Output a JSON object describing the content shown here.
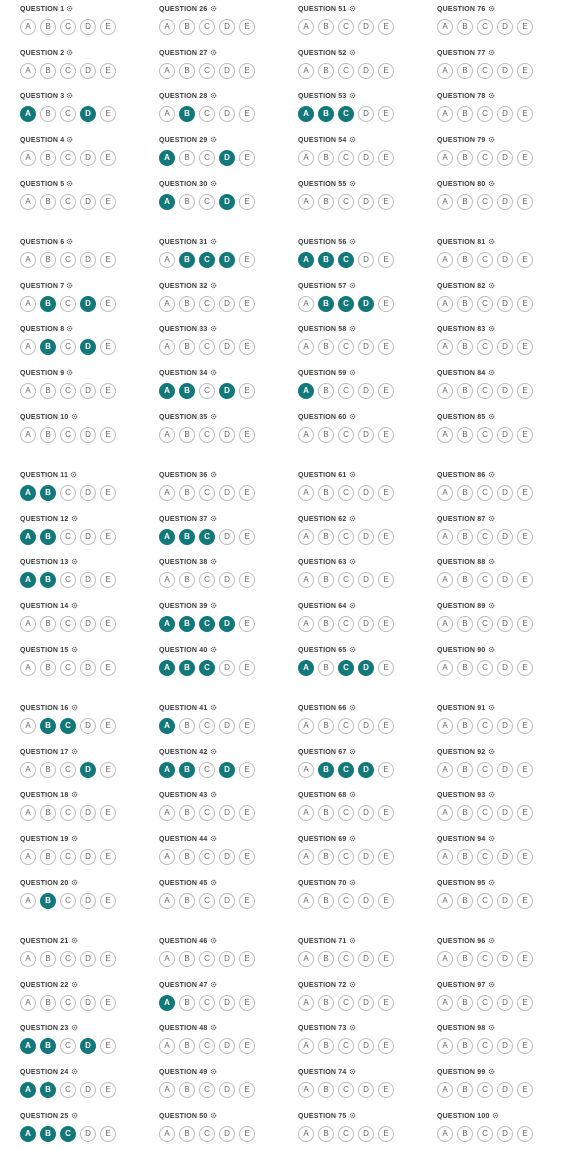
{
  "options": [
    "A",
    "B",
    "C",
    "D",
    "E"
  ],
  "colors": {
    "selected": "#13787a",
    "border": "#bcbcbc",
    "label": "#3a3a3a"
  },
  "icon": "gear-icon",
  "questions": [
    {
      "label": "QUESTION 1",
      "selected": []
    },
    {
      "label": "QUESTION 2",
      "selected": []
    },
    {
      "label": "QUESTION 3",
      "selected": [
        "A",
        "D"
      ]
    },
    {
      "label": "QUESTION 4",
      "selected": []
    },
    {
      "label": "QUESTION 5",
      "selected": []
    },
    {
      "label": "QUESTION 6",
      "selected": []
    },
    {
      "label": "QUESTION 7",
      "selected": [
        "B",
        "D"
      ]
    },
    {
      "label": "QUESTION 8",
      "selected": [
        "B",
        "D"
      ]
    },
    {
      "label": "QUESTION 9",
      "selected": []
    },
    {
      "label": "QUESTION 10",
      "selected": []
    },
    {
      "label": "QUESTION 11",
      "selected": [
        "A",
        "B"
      ]
    },
    {
      "label": "QUESTION 12",
      "selected": [
        "A",
        "B"
      ]
    },
    {
      "label": "QUESTION 13",
      "selected": [
        "A",
        "B"
      ]
    },
    {
      "label": "QUESTION 14",
      "selected": []
    },
    {
      "label": "QUESTION 15",
      "selected": []
    },
    {
      "label": "QUESTION 16",
      "selected": [
        "B",
        "C"
      ]
    },
    {
      "label": "QUESTION 17",
      "selected": [
        "D"
      ]
    },
    {
      "label": "QUESTION 18",
      "selected": []
    },
    {
      "label": "QUESTION 19",
      "selected": []
    },
    {
      "label": "QUESTION 20",
      "selected": [
        "B"
      ]
    },
    {
      "label": "QUESTION 21",
      "selected": []
    },
    {
      "label": "QUESTION 22",
      "selected": []
    },
    {
      "label": "QUESTION 23",
      "selected": [
        "A",
        "B",
        "D"
      ]
    },
    {
      "label": "QUESTION 24",
      "selected": [
        "A",
        "B"
      ]
    },
    {
      "label": "QUESTION 25",
      "selected": [
        "A",
        "B",
        "C"
      ]
    },
    {
      "label": "QUESTION 26",
      "selected": []
    },
    {
      "label": "QUESTION 27",
      "selected": []
    },
    {
      "label": "QUESTION 28",
      "selected": [
        "B"
      ]
    },
    {
      "label": "QUESTION 29",
      "selected": [
        "A",
        "D"
      ]
    },
    {
      "label": "QUESTION 30",
      "selected": [
        "A",
        "D"
      ]
    },
    {
      "label": "QUESTION 31",
      "selected": [
        "B",
        "C",
        "D"
      ]
    },
    {
      "label": "QUESTION 32",
      "selected": []
    },
    {
      "label": "QUESTION 33",
      "selected": []
    },
    {
      "label": "QUESTION 34",
      "selected": [
        "A",
        "B",
        "D"
      ]
    },
    {
      "label": "QUESTION 35",
      "selected": []
    },
    {
      "label": "QUESTION 36",
      "selected": []
    },
    {
      "label": "QUESTION 37",
      "selected": [
        "A",
        "B",
        "C"
      ]
    },
    {
      "label": "QUESTION 38",
      "selected": []
    },
    {
      "label": "QUESTION 39",
      "selected": [
        "A",
        "B",
        "C",
        "D"
      ]
    },
    {
      "label": "QUESTION 40",
      "selected": [
        "A",
        "B",
        "C"
      ]
    },
    {
      "label": "QUESTION 41",
      "selected": [
        "A"
      ]
    },
    {
      "label": "QUESTION 42",
      "selected": [
        "A",
        "B",
        "D"
      ]
    },
    {
      "label": "QUESTION 43",
      "selected": []
    },
    {
      "label": "QUESTION 44",
      "selected": []
    },
    {
      "label": "QUESTION 45",
      "selected": []
    },
    {
      "label": "QUESTION 46",
      "selected": []
    },
    {
      "label": "QUESTION 47",
      "selected": [
        "A"
      ]
    },
    {
      "label": "QUESTION 48",
      "selected": []
    },
    {
      "label": "QUESTION 49",
      "selected": []
    },
    {
      "label": "QUESTION 50",
      "selected": []
    },
    {
      "label": "QUESTION 51",
      "selected": []
    },
    {
      "label": "QUESTION 52",
      "selected": []
    },
    {
      "label": "QUESTION 53",
      "selected": [
        "A",
        "B",
        "C"
      ]
    },
    {
      "label": "QUESTION 54",
      "selected": []
    },
    {
      "label": "QUESTION 55",
      "selected": []
    },
    {
      "label": "QUESTION 56",
      "selected": [
        "A",
        "B",
        "C"
      ]
    },
    {
      "label": "QUESTION 57",
      "selected": [
        "B",
        "C",
        "D"
      ]
    },
    {
      "label": "QUESTION 58",
      "selected": []
    },
    {
      "label": "QUESTION 59",
      "selected": [
        "A"
      ]
    },
    {
      "label": "QUESTION 60",
      "selected": []
    },
    {
      "label": "QUESTION 61",
      "selected": []
    },
    {
      "label": "QUESTION 62",
      "selected": []
    },
    {
      "label": "QUESTION 63",
      "selected": []
    },
    {
      "label": "QUESTION 64",
      "selected": []
    },
    {
      "label": "QUESTION 65",
      "selected": [
        "A",
        "C",
        "D"
      ]
    },
    {
      "label": "QUESTION 66",
      "selected": []
    },
    {
      "label": "QUESTION 67",
      "selected": [
        "B",
        "C",
        "D"
      ]
    },
    {
      "label": "QUESTION 68",
      "selected": []
    },
    {
      "label": "QUESTION 69",
      "selected": []
    },
    {
      "label": "QUESTION 70",
      "selected": []
    },
    {
      "label": "QUESTION 71",
      "selected": []
    },
    {
      "label": "QUESTION 72",
      "selected": []
    },
    {
      "label": "QUESTION 73",
      "selected": []
    },
    {
      "label": "QUESTION 74",
      "selected": []
    },
    {
      "label": "QUESTION 75",
      "selected": []
    },
    {
      "label": "QUESTION 76",
      "selected": []
    },
    {
      "label": "QUESTION 77",
      "selected": []
    },
    {
      "label": "QUESTION 78",
      "selected": []
    },
    {
      "label": "QUESTION 79",
      "selected": []
    },
    {
      "label": "QUESTION 80",
      "selected": []
    },
    {
      "label": "QUESTION 81",
      "selected": []
    },
    {
      "label": "QUESTION 82",
      "selected": []
    },
    {
      "label": "QUESTION 83",
      "selected": []
    },
    {
      "label": "QUESTION 84",
      "selected": []
    },
    {
      "label": "QUESTION 85",
      "selected": []
    },
    {
      "label": "QUESTION 86",
      "selected": []
    },
    {
      "label": "QUESTION 87",
      "selected": []
    },
    {
      "label": "QUESTION 88",
      "selected": []
    },
    {
      "label": "QUESTION 89",
      "selected": []
    },
    {
      "label": "QUESTION 90",
      "selected": []
    },
    {
      "label": "QUESTION 91",
      "selected": []
    },
    {
      "label": "QUESTION 92",
      "selected": []
    },
    {
      "label": "QUESTION 93",
      "selected": []
    },
    {
      "label": "QUESTION 94",
      "selected": []
    },
    {
      "label": "QUESTION 95",
      "selected": []
    },
    {
      "label": "QUESTION 96",
      "selected": []
    },
    {
      "label": "QUESTION 97",
      "selected": []
    },
    {
      "label": "QUESTION 98",
      "selected": []
    },
    {
      "label": "QUESTION 99",
      "selected": []
    },
    {
      "label": "QUESTION 100",
      "selected": []
    }
  ]
}
